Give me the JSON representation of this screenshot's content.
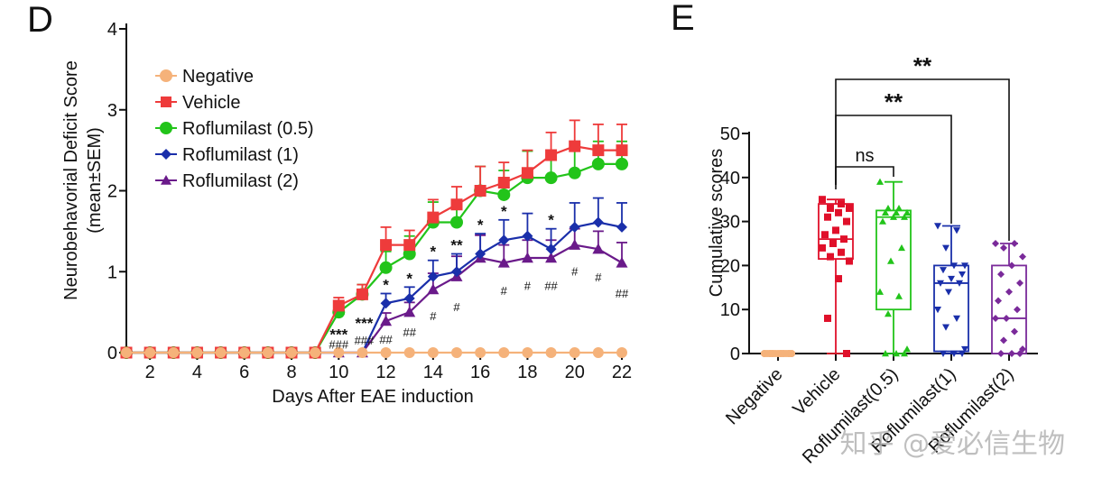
{
  "chart_data": [
    {
      "type": "line",
      "panel_label": "D",
      "xlabel": "Days After EAE induction",
      "ylabel_line1": "Neurobehavorial Deficit Score",
      "ylabel_line2": "(mean±SEM)",
      "xlim": [
        1,
        22
      ],
      "ylim": [
        0,
        4
      ],
      "x_ticks": [
        2,
        4,
        6,
        8,
        10,
        12,
        14,
        16,
        18,
        20,
        22
      ],
      "x_tick_labels": [
        "2",
        "4",
        "6",
        "8",
        "10",
        "12",
        "14",
        "16",
        "18",
        "20",
        "22"
      ],
      "y_ticks": [
        0,
        1,
        2,
        3,
        4
      ],
      "y_tick_labels": [
        "0",
        "1",
        "2",
        "3",
        "4"
      ],
      "legend_position": "upper-left",
      "x": [
        1,
        2,
        3,
        4,
        5,
        6,
        7,
        8,
        9,
        10,
        11,
        12,
        13,
        14,
        15,
        16,
        17,
        18,
        19,
        20,
        21,
        22
      ],
      "series": [
        {
          "name": "Negative",
          "color": "#f5b27a",
          "marker": "circle",
          "values": [
            0,
            0,
            0,
            0,
            0,
            0,
            0,
            0,
            0,
            0,
            0,
            0,
            0,
            0,
            0,
            0,
            0,
            0,
            0,
            0,
            0,
            0
          ],
          "errors": [
            0,
            0,
            0,
            0,
            0,
            0,
            0,
            0,
            0,
            0,
            0,
            0,
            0,
            0,
            0,
            0,
            0,
            0,
            0,
            0,
            0,
            0
          ]
        },
        {
          "name": "Vehicle",
          "color": "#ee3b3b",
          "marker": "square",
          "values": [
            0,
            0,
            0,
            0,
            0,
            0,
            0,
            0,
            0,
            0.58,
            0.72,
            1.33,
            1.33,
            1.67,
            1.83,
            2.0,
            2.1,
            2.22,
            2.44,
            2.55,
            2.5,
            2.5
          ],
          "errors": [
            0,
            0,
            0,
            0,
            0,
            0,
            0,
            0,
            0,
            0.1,
            0.12,
            0.22,
            0.18,
            0.22,
            0.22,
            0.3,
            0.25,
            0.28,
            0.28,
            0.32,
            0.32,
            0.32
          ]
        },
        {
          "name": "Roflumilast (0.5)",
          "color": "#22c41a",
          "marker": "circle",
          "values": [
            0,
            0,
            0,
            0,
            0,
            0,
            0,
            0,
            0,
            0.5,
            0.72,
            1.05,
            1.22,
            1.61,
            1.61,
            2.0,
            1.95,
            2.16,
            2.16,
            2.22,
            2.33,
            2.33
          ],
          "errors": [
            0,
            0,
            0,
            0,
            0,
            0,
            0,
            0,
            0,
            0.12,
            0.12,
            0.2,
            0.22,
            0.25,
            0.22,
            0.3,
            0.3,
            0.33,
            0.33,
            0.3,
            0.28,
            0.28
          ]
        },
        {
          "name": "Roflumilast (1)",
          "color": "#1a2faa",
          "marker": "diamond",
          "values": [
            0,
            0,
            0,
            0,
            0,
            0,
            0,
            0,
            0,
            0,
            0,
            0.61,
            0.67,
            0.94,
            1.0,
            1.22,
            1.39,
            1.44,
            1.28,
            1.55,
            1.61,
            1.55
          ],
          "errors": [
            0,
            0,
            0,
            0,
            0,
            0,
            0,
            0,
            0,
            0,
            0,
            0.12,
            0.14,
            0.2,
            0.22,
            0.25,
            0.25,
            0.28,
            0.25,
            0.3,
            0.3,
            0.3
          ]
        },
        {
          "name": "Roflumilast (2)",
          "color": "#6a1a8a",
          "marker": "triangle",
          "values": [
            0,
            0,
            0,
            0,
            0,
            0,
            0,
            0,
            0,
            0,
            0,
            0.39,
            0.5,
            0.78,
            0.94,
            1.17,
            1.11,
            1.17,
            1.17,
            1.33,
            1.28,
            1.11
          ],
          "errors": [
            0,
            0,
            0,
            0,
            0,
            0,
            0,
            0,
            0,
            0,
            0,
            0.1,
            0.12,
            0.2,
            0.25,
            0.28,
            0.22,
            0.22,
            0.22,
            0.2,
            0.22,
            0.25
          ]
        }
      ],
      "annotations_top": [
        {
          "x": 10,
          "text": "***"
        },
        {
          "x": 11,
          "text": "***"
        },
        {
          "x": 12,
          "text": "*"
        },
        {
          "x": 13,
          "text": "*"
        },
        {
          "x": 14,
          "text": "*"
        },
        {
          "x": 15,
          "text": "**"
        },
        {
          "x": 16,
          "text": "*"
        },
        {
          "x": 17,
          "text": "*"
        },
        {
          "x": 19,
          "text": "*"
        }
      ],
      "annotations_bottom": [
        {
          "x": 10,
          "text": "###"
        },
        {
          "x": 11,
          "text": "###"
        },
        {
          "x": 12,
          "text": "##"
        },
        {
          "x": 13,
          "text": "##"
        },
        {
          "x": 14,
          "text": "#"
        },
        {
          "x": 15,
          "text": "#"
        },
        {
          "x": 17,
          "text": "#"
        },
        {
          "x": 18,
          "text": "#"
        },
        {
          "x": 19,
          "text": "##"
        },
        {
          "x": 20,
          "text": "#"
        },
        {
          "x": 21,
          "text": "#"
        },
        {
          "x": 22,
          "text": "##"
        }
      ]
    },
    {
      "type": "box",
      "panel_label": "E",
      "ylabel": "Cumulative scores",
      "ylim": [
        0,
        50
      ],
      "y_ticks": [
        0,
        10,
        20,
        30,
        40,
        50
      ],
      "y_tick_labels": [
        "0",
        "10",
        "20",
        "30",
        "40",
        "50"
      ],
      "categories": [
        "Negative",
        "Vehicle",
        "Roflumilast(0.5)",
        "Roflumilast(1)",
        "Roflumilast(2)"
      ],
      "boxes": [
        {
          "name": "Negative",
          "color": "#f5b27a",
          "marker": "circle",
          "min": 0,
          "q1": 0,
          "median": 0,
          "q3": 0,
          "max": 0,
          "points": [
            0,
            0,
            0,
            0,
            0,
            0,
            0,
            0,
            0,
            0,
            0,
            0,
            0,
            0,
            0,
            0,
            0,
            0
          ]
        },
        {
          "name": "Vehicle",
          "color": "#e0102a",
          "marker": "square",
          "min": 0,
          "q1": 21.5,
          "median": 26,
          "q3": 34,
          "max": 35,
          "points": [
            35,
            34,
            33,
            33,
            32,
            31,
            30,
            28,
            27,
            26,
            25,
            24,
            23,
            22,
            21,
            17,
            8,
            0
          ]
        },
        {
          "name": "Roflumilast(0.5)",
          "color": "#22c41a",
          "marker": "triangle",
          "min": 0,
          "q1": 10,
          "median": 31,
          "q3": 32.5,
          "max": 39,
          "points": [
            39,
            33,
            33,
            32,
            32,
            32,
            31,
            31,
            30,
            24,
            21,
            14,
            13,
            9,
            1,
            0,
            0,
            0
          ]
        },
        {
          "name": "Roflumilast(1)",
          "color": "#1a2faa",
          "marker": "triangle-down",
          "min": 0,
          "q1": 0.5,
          "median": 16,
          "q3": 20,
          "max": 29,
          "points": [
            29,
            28,
            24,
            20,
            20,
            19,
            18,
            17,
            16,
            16,
            14,
            10,
            8,
            6,
            1,
            0,
            0,
            0
          ]
        },
        {
          "name": "Roflumilast(2)",
          "color": "#7a2a9a",
          "marker": "diamond",
          "min": 0,
          "q1": 0,
          "median": 8,
          "q3": 20,
          "max": 25,
          "points": [
            25,
            25,
            24,
            22,
            20,
            18,
            16,
            14,
            12,
            10,
            8,
            8,
            5,
            3,
            1,
            0,
            0,
            0
          ]
        }
      ],
      "significance": [
        {
          "from": "Vehicle",
          "to": "Roflumilast(0.5)",
          "label": "ns"
        },
        {
          "from": "Vehicle",
          "to": "Roflumilast(1)",
          "label": "**"
        },
        {
          "from": "Vehicle",
          "to": "Roflumilast(2)",
          "label": "**"
        }
      ]
    }
  ],
  "watermark": "知乎 @爱必信生物"
}
